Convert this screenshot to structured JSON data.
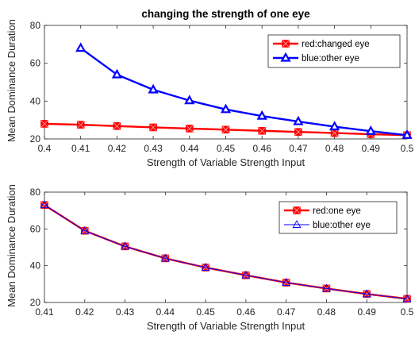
{
  "chart_data": [
    {
      "type": "line",
      "title": "changing the strength of one eye",
      "xlabel": "Strength of Variable Strength Input",
      "ylabel": "Mean Dominance Duration",
      "xlim": [
        0.4,
        0.5
      ],
      "ylim": [
        20,
        80
      ],
      "xticks": [
        0.4,
        0.41,
        0.42,
        0.43,
        0.44,
        0.45,
        0.46,
        0.47,
        0.48,
        0.49,
        0.5
      ],
      "xtick_labels": [
        "0.4",
        "0.41",
        "0.42",
        "0.43",
        "0.44",
        "0.45",
        "0.46",
        "0.47",
        "0.48",
        "0.49",
        "0.5"
      ],
      "yticks": [
        20,
        40,
        60,
        80
      ],
      "ytick_labels": [
        "20",
        "40",
        "60",
        "80"
      ],
      "grid": false,
      "legend_position": "top-right",
      "series": [
        {
          "name": "red:changed eye",
          "color": "#ff0000",
          "marker": "square-x",
          "line_width": "thick",
          "x": [
            0.4,
            0.41,
            0.42,
            0.43,
            0.44,
            0.45,
            0.46,
            0.47,
            0.48,
            0.49,
            0.5
          ],
          "y": [
            28,
            27.5,
            26.8,
            26.1,
            25.5,
            24.9,
            24.3,
            23.7,
            23.1,
            22.5,
            22
          ]
        },
        {
          "name": "blue:other eye",
          "color": "#0000ff",
          "marker": "triangle",
          "line_width": "thick",
          "x": [
            0.41,
            0.42,
            0.43,
            0.44,
            0.45,
            0.46,
            0.47,
            0.48,
            0.49,
            0.5
          ],
          "y": [
            68,
            54,
            46,
            40.3,
            35.6,
            32.1,
            29.2,
            26.5,
            24.1,
            22
          ]
        }
      ]
    },
    {
      "type": "line",
      "title": "",
      "xlabel": "Strength of Variable Strength Input",
      "ylabel": "Mean Dominance Duration",
      "xlim": [
        0.41,
        0.5
      ],
      "ylim": [
        20,
        80
      ],
      "xticks": [
        0.41,
        0.42,
        0.43,
        0.44,
        0.45,
        0.46,
        0.47,
        0.48,
        0.49,
        0.5
      ],
      "xtick_labels": [
        "0.41",
        "0.42",
        "0.43",
        "0.44",
        "0.45",
        "0.46",
        "0.47",
        "0.48",
        "0.49",
        "0.5"
      ],
      "yticks": [
        20,
        40,
        60,
        80
      ],
      "ytick_labels": [
        "20",
        "40",
        "60",
        "80"
      ],
      "grid": false,
      "legend_position": "top-right",
      "series": [
        {
          "name": "red:one eye",
          "color": "#ff0000",
          "marker": "square-x",
          "line_width": "thick",
          "x": [
            0.41,
            0.42,
            0.43,
            0.44,
            0.45,
            0.46,
            0.47,
            0.48,
            0.49,
            0.5
          ],
          "y": [
            73,
            59,
            50.5,
            44,
            39,
            34.8,
            30.8,
            27.6,
            24.6,
            22
          ]
        },
        {
          "name": "blue:other eye",
          "color": "#0000ff",
          "marker": "triangle-open",
          "line_width": "thin",
          "x": [
            0.41,
            0.42,
            0.43,
            0.44,
            0.45,
            0.46,
            0.47,
            0.48,
            0.49,
            0.5
          ],
          "y": [
            73,
            59,
            50.5,
            44,
            39,
            34.8,
            30.8,
            27.6,
            24.6,
            22
          ]
        }
      ]
    }
  ]
}
